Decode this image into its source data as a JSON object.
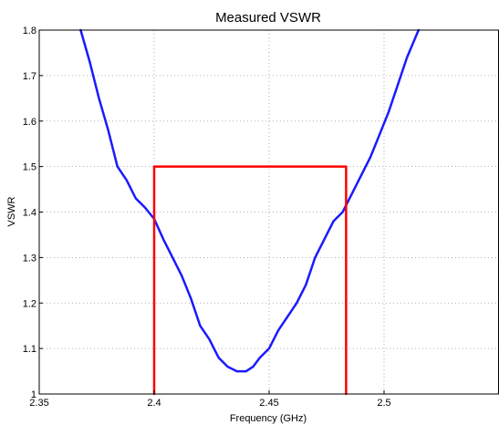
{
  "chart_data": {
    "type": "line",
    "title": "Measured VSWR",
    "xlabel": "Frequency (GHz)",
    "ylabel": "VSWR",
    "xlim": [
      2.35,
      2.55
    ],
    "ylim": [
      1.0,
      1.8
    ],
    "grid": true,
    "xticks": [
      2.35,
      2.4,
      2.45,
      2.5
    ],
    "xtick_labels": [
      "2.35",
      "2.4",
      "2.45",
      "2.5"
    ],
    "yticks": [
      1.0,
      1.1,
      1.2,
      1.3,
      1.4,
      1.5,
      1.6,
      1.7,
      1.8
    ],
    "ytick_labels": [
      "1",
      "1.1",
      "1.2",
      "1.3",
      "1.4",
      "1.5",
      "1.6",
      "1.7",
      "1.8"
    ],
    "series": [
      {
        "color": "#1a1aff",
        "x": [
          2.368,
          2.372,
          2.376,
          2.38,
          2.384,
          2.388,
          2.392,
          2.396,
          2.4,
          2.404,
          2.408,
          2.412,
          2.416,
          2.42,
          2.424,
          2.428,
          2.432,
          2.436,
          2.44,
          2.443,
          2.446,
          2.45,
          2.454,
          2.458,
          2.462,
          2.466,
          2.47,
          2.474,
          2.478,
          2.482,
          2.486,
          2.49,
          2.494,
          2.498,
          2.502,
          2.506,
          2.51,
          2.515
        ],
        "y": [
          1.8,
          1.73,
          1.65,
          1.58,
          1.5,
          1.47,
          1.43,
          1.41,
          1.385,
          1.34,
          1.3,
          1.26,
          1.21,
          1.15,
          1.12,
          1.08,
          1.06,
          1.05,
          1.05,
          1.06,
          1.08,
          1.1,
          1.14,
          1.17,
          1.2,
          1.24,
          1.3,
          1.34,
          1.38,
          1.4,
          1.44,
          1.48,
          1.52,
          1.57,
          1.62,
          1.68,
          1.74,
          1.8
        ]
      },
      {
        "color": "#ff0000",
        "x": [
          2.4,
          2.4,
          2.4835,
          2.4835
        ],
        "y": [
          1.0,
          1.5,
          1.5,
          1.0
        ]
      }
    ]
  }
}
